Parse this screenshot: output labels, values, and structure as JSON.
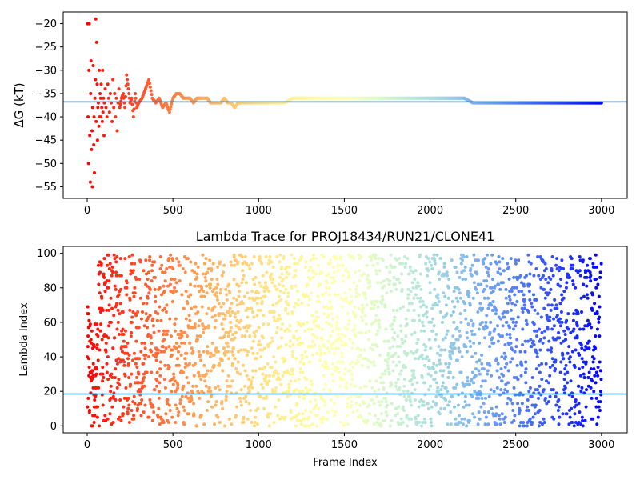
{
  "chart_data": [
    {
      "type": "scatter",
      "title": "",
      "xlabel": "",
      "ylabel": "ΔG (kT)",
      "xlim": [
        -140,
        3150
      ],
      "ylim": [
        -57.5,
        -17.5
      ],
      "xticks": [
        0,
        500,
        1000,
        1500,
        2000,
        2500,
        3000
      ],
      "yticks": [
        -55,
        -50,
        -45,
        -40,
        -35,
        -30,
        -25,
        -20
      ],
      "reference_line": -36.8,
      "colormap": "rainbow",
      "colormap_range": [
        0,
        3000
      ],
      "grid": false,
      "series": [
        {
          "points": [
            [
              2,
              -20
            ],
            [
              5,
              -40
            ],
            [
              8,
              -50
            ],
            [
              10,
              -30
            ],
            [
              12,
              -20
            ],
            [
              15,
              -44
            ],
            [
              18,
              -54
            ],
            [
              20,
              -35
            ],
            [
              22,
              -28
            ],
            [
              25,
              -47
            ],
            [
              28,
              -43
            ],
            [
              30,
              -55
            ],
            [
              32,
              -38
            ],
            [
              35,
              -29
            ],
            [
              38,
              -46
            ],
            [
              40,
              -40
            ],
            [
              42,
              -52
            ],
            [
              45,
              -36
            ],
            [
              48,
              -32
            ],
            [
              50,
              -19
            ],
            [
              52,
              -41
            ],
            [
              55,
              -24
            ],
            [
              58,
              -33
            ],
            [
              60,
              -45
            ],
            [
              62,
              -38
            ],
            [
              65,
              -37
            ],
            [
              68,
              -42
            ],
            [
              70,
              -30
            ],
            [
              72,
              -40
            ],
            [
              75,
              -35
            ],
            [
              78,
              -36
            ],
            [
              80,
              -40
            ],
            [
              82,
              -33
            ],
            [
              85,
              -38
            ],
            [
              88,
              -41
            ],
            [
              90,
              -30
            ],
            [
              92,
              -39
            ],
            [
              95,
              -36
            ],
            [
              98,
              -44
            ],
            [
              100,
              -37
            ],
            [
              105,
              -34
            ],
            [
              110,
              -38
            ],
            [
              115,
              -40
            ],
            [
              120,
              -33
            ],
            [
              125,
              -36
            ],
            [
              130,
              -39
            ],
            [
              135,
              -35
            ],
            [
              140,
              -37
            ],
            [
              145,
              -41
            ],
            [
              150,
              -32
            ],
            [
              155,
              -38
            ],
            [
              160,
              -35
            ],
            [
              165,
              -40
            ],
            [
              170,
              -36
            ],
            [
              175,
              -43
            ],
            [
              180,
              -37
            ],
            [
              185,
              -34
            ],
            [
              190,
              -38
            ],
            [
              200,
              -36
            ],
            [
              210,
              -35
            ],
            [
              220,
              -38
            ],
            [
              230,
              -31
            ],
            [
              240,
              -34
            ],
            [
              250,
              -37
            ],
            [
              260,
              -36
            ],
            [
              270,
              -40
            ],
            [
              280,
              -35
            ],
            [
              290,
              -38
            ],
            [
              300,
              -37
            ],
            [
              320,
              -36
            ],
            [
              340,
              -34
            ],
            [
              360,
              -32
            ],
            [
              380,
              -36
            ],
            [
              400,
              -37
            ],
            [
              420,
              -36
            ],
            [
              440,
              -38
            ],
            [
              460,
              -37
            ],
            [
              480,
              -39
            ],
            [
              500,
              -36
            ],
            [
              520,
              -35
            ],
            [
              540,
              -35
            ],
            [
              560,
              -36
            ],
            [
              580,
              -36
            ],
            [
              600,
              -36
            ],
            [
              620,
              -37
            ],
            [
              640,
              -36
            ],
            [
              660,
              -36
            ],
            [
              680,
              -36
            ],
            [
              700,
              -36
            ],
            [
              720,
              -37
            ],
            [
              740,
              -37
            ],
            [
              760,
              -37
            ],
            [
              780,
              -37
            ],
            [
              800,
              -36
            ],
            [
              820,
              -37
            ],
            [
              840,
              -37
            ],
            [
              860,
              -38
            ],
            [
              880,
              -37
            ],
            [
              900,
              -37
            ],
            [
              920,
              -37
            ],
            [
              940,
              -37
            ],
            [
              960,
              -37
            ],
            [
              980,
              -37
            ],
            [
              1000,
              -37
            ],
            [
              1050,
              -37
            ],
            [
              1100,
              -37
            ],
            [
              1150,
              -37
            ],
            [
              1200,
              -36
            ],
            [
              1250,
              -36
            ],
            [
              1300,
              -36
            ],
            [
              1350,
              -36
            ],
            [
              1400,
              -36
            ],
            [
              1450,
              -36
            ],
            [
              1500,
              -36
            ],
            [
              1550,
              -36
            ],
            [
              1600,
              -36
            ],
            [
              1650,
              -36
            ],
            [
              1700,
              -36
            ],
            [
              1750,
              -36
            ],
            [
              1800,
              -36
            ],
            [
              1850,
              -36
            ],
            [
              1900,
              -36
            ],
            [
              1950,
              -36
            ],
            [
              2000,
              -36
            ],
            [
              2050,
              -36
            ],
            [
              2100,
              -36
            ],
            [
              2150,
              -36
            ],
            [
              2200,
              -36
            ],
            [
              2250,
              -37
            ],
            [
              2300,
              -37
            ],
            [
              2350,
              -37
            ],
            [
              2400,
              -37
            ],
            [
              2450,
              -37
            ],
            [
              2500,
              -37
            ],
            [
              2550,
              -37
            ],
            [
              2600,
              -37
            ],
            [
              2650,
              -37
            ],
            [
              2700,
              -37
            ],
            [
              2750,
              -37
            ],
            [
              2800,
              -37
            ],
            [
              2850,
              -37
            ],
            [
              2900,
              -37
            ],
            [
              2950,
              -37
            ],
            [
              3000,
              -37
            ]
          ]
        }
      ]
    },
    {
      "type": "scatter",
      "title": "Lambda Trace for PROJ18434/RUN21/CLONE41",
      "xlabel": "Frame Index",
      "ylabel": "Lambda Index",
      "xlim": [
        -140,
        3150
      ],
      "ylim": [
        -4,
        104
      ],
      "xticks": [
        0,
        500,
        1000,
        1500,
        2000,
        2500,
        3000
      ],
      "yticks": [
        0,
        20,
        40,
        60,
        80,
        100
      ],
      "reference_line": 18.5,
      "colormap": "rainbow",
      "colormap_range": [
        0,
        3000
      ],
      "grid": false,
      "point_count": 3000,
      "distribution": "dense scatter of lambda index values between 0 and 99 across all frames"
    }
  ]
}
